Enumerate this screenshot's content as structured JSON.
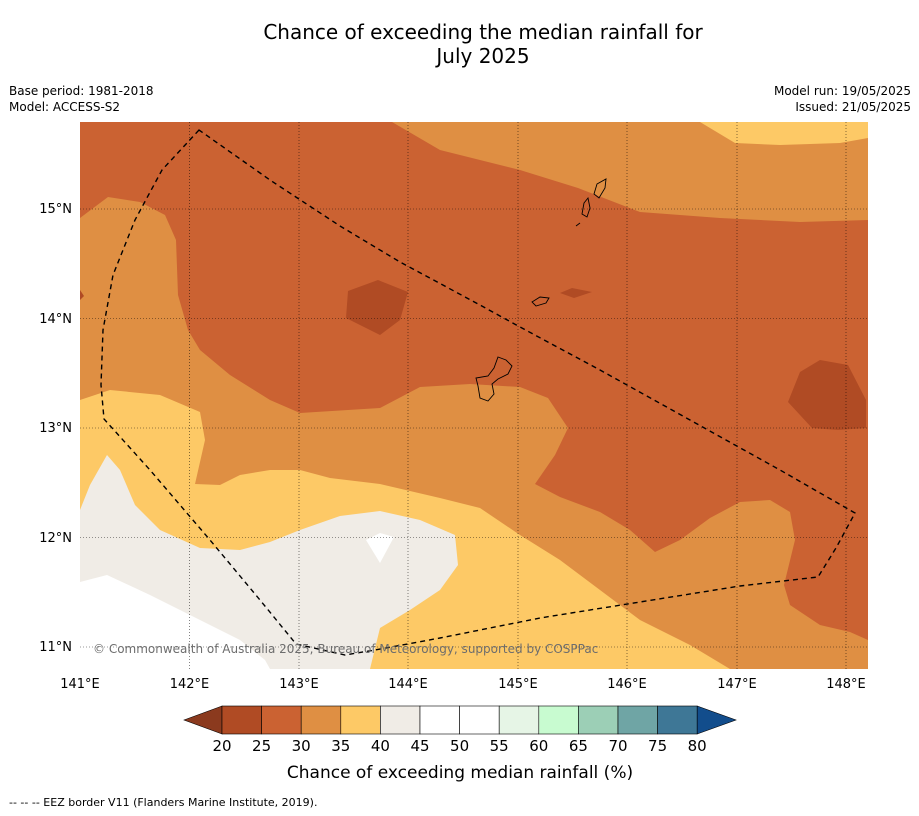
{
  "title": {
    "line1": "Chance of exceeding the median rainfall for",
    "line2": "July 2025"
  },
  "meta": {
    "base_period": "Base period: 1981-2018",
    "model": "Model: ACCESS-S2",
    "model_run": "Model run: 19/05/2025",
    "issued": "Issued: 21/05/2025"
  },
  "map": {
    "copyright": "© Commonwealth of Australia 2025, Bureau of Meteorology, supported by COSPPac",
    "lon_ticks": [
      "141°E",
      "142°E",
      "143°E",
      "144°E",
      "145°E",
      "146°E",
      "147°E",
      "148°E"
    ],
    "lat_ticks": [
      "15°N",
      "14°N",
      "13°N",
      "12°N",
      "11°N"
    ],
    "lon_range": [
      141,
      148.2
    ],
    "lat_range": [
      10.8,
      15.8
    ]
  },
  "colorbar": {
    "label": "Chance of exceeding median rainfall (%)",
    "ticks": [
      "20",
      "25",
      "30",
      "35",
      "40",
      "45",
      "50",
      "55",
      "60",
      "65",
      "70",
      "75",
      "80"
    ],
    "colors": {
      "below_20": "#8b3a1e",
      "20_25": "#b04b24",
      "25_30": "#cb6232",
      "30_35": "#df8f43",
      "35_40": "#fdc966",
      "40_45": "#f0ece6",
      "45_50": "#ffffff",
      "50_55": "#ffffff",
      "55_60": "#e6f5e6",
      "60_65": "#c8fbd0",
      "65_70": "#9ccfb6",
      "70_75": "#6fa5a5",
      "75_80": "#3e7796",
      "above_80": "#124d8c"
    }
  },
  "footnote": "--  --  -- EEZ border V11 (Flanders Marine Institute, 2019)."
}
